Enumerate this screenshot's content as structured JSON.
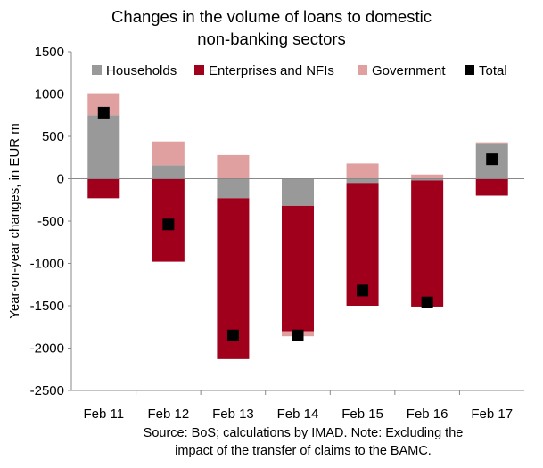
{
  "chart_data": {
    "type": "bar",
    "stacked": true,
    "title": [
      "Changes in the volume of loans to domestic",
      "non-banking sectors"
    ],
    "ylabel": "Year-on-year changes, in EUR m",
    "xlabel": "",
    "categories": [
      "Feb 11",
      "Feb 12",
      "Feb 13",
      "Feb 14",
      "Feb 15",
      "Feb 16",
      "Feb 17"
    ],
    "ylim": [
      -2500,
      1500
    ],
    "yticks": [
      1500,
      1000,
      500,
      0,
      -500,
      -1000,
      -1500,
      -2000,
      -2500
    ],
    "grid": false,
    "legend_position": "top",
    "series": [
      {
        "name": "Households",
        "kind": "bar",
        "color": "#999999",
        "values": [
          750,
          160,
          -230,
          -320,
          -50,
          -20,
          420
        ]
      },
      {
        "name": "Enterprises and NFIs",
        "kind": "bar",
        "color": "#a0001b",
        "values": [
          -230,
          -980,
          -1900,
          -1480,
          -1450,
          -1490,
          -200
        ]
      },
      {
        "name": "Government",
        "kind": "bar",
        "color": "#e0a0a0",
        "values": [
          260,
          280,
          280,
          -60,
          180,
          50,
          10
        ]
      },
      {
        "name": "Total",
        "kind": "marker",
        "color": "#000000",
        "values": [
          780,
          -540,
          -1850,
          -1850,
          -1320,
          -1460,
          230
        ]
      }
    ]
  },
  "note": [
    "Source: BoS; calculations by IMAD. Note: Excluding the",
    "impact of the transfer of claims to the BAMC."
  ]
}
